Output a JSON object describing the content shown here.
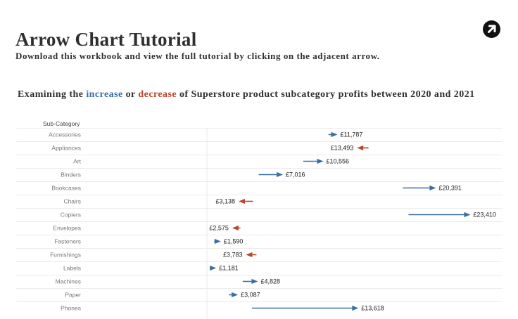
{
  "header": {
    "title": "Arrow Chart Tutorial",
    "subtitle": "Download this workbook and view the full tutorial by clicking on the adjacent arrow.",
    "link_icon": "arrow-up-right-circle-icon"
  },
  "headline": {
    "prefix": "Examining the ",
    "increase_word": "increase",
    "middle": " or ",
    "decrease_word": "decrease",
    "suffix": " of Superstore product subcategory profits between 2020 and 2021"
  },
  "colors": {
    "increase": "#3a6ea5",
    "decrease": "#b5482e",
    "text": "#2f2f2f",
    "row_label": "#777777",
    "grid": "#ebebeb"
  },
  "chart_data": {
    "type": "arrow",
    "row_header": "Sub-Category",
    "currency": "£",
    "title": "",
    "xlabel": "",
    "ylabel": "",
    "grid": true,
    "rows": [
      {
        "category": "Accessories",
        "from": 11000,
        "to": 11787,
        "label": "£11,787"
      },
      {
        "category": "Appliances",
        "from": 14500,
        "to": 13493,
        "label": "£13,493"
      },
      {
        "category": "Art",
        "from": 8800,
        "to": 10556,
        "label": "£10,556"
      },
      {
        "category": "Binders",
        "from": 4900,
        "to": 7016,
        "label": "£7,016"
      },
      {
        "category": "Bookcases",
        "from": 17500,
        "to": 20391,
        "label": "£20,391"
      },
      {
        "category": "Chairs",
        "from": 4400,
        "to": 3138,
        "label": "£3,138"
      },
      {
        "category": "Copiers",
        "from": 18000,
        "to": 23410,
        "label": "£23,410"
      },
      {
        "category": "Envelopes",
        "from": 3300,
        "to": 2575,
        "label": "£2,575"
      },
      {
        "category": "Fasteners",
        "from": 1000,
        "to": 1590,
        "label": "£1,590"
      },
      {
        "category": "Furnishings",
        "from": 4700,
        "to": 3783,
        "label": "£3,783"
      },
      {
        "category": "Labels",
        "from": 700,
        "to": 1181,
        "label": "£1,181"
      },
      {
        "category": "Machines",
        "from": 3500,
        "to": 4828,
        "label": "£4,828"
      },
      {
        "category": "Paper",
        "from": 2300,
        "to": 3087,
        "label": "£3,087"
      },
      {
        "category": "Phones",
        "from": 4300,
        "to": 13618,
        "label": "£13,618"
      }
    ]
  }
}
